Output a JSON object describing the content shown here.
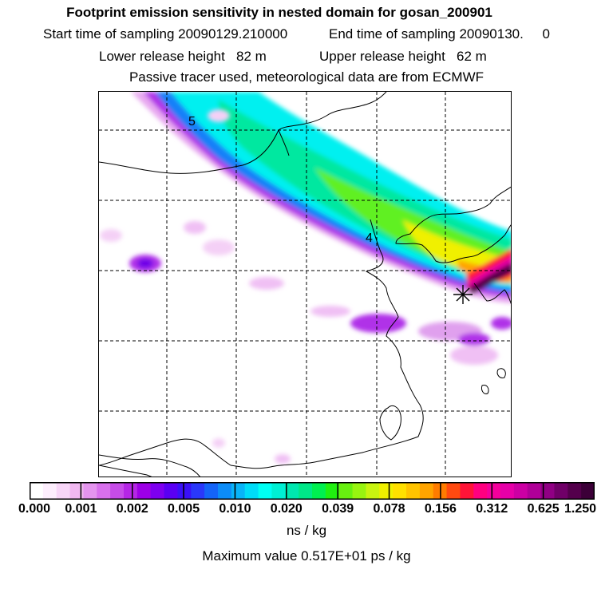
{
  "title": "Footprint emission sensitivity in nested domain for gosan_200901",
  "sampling": {
    "start": "Start time of sampling 20090129.210000",
    "end": "End time of sampling 20090130.     0"
  },
  "release": {
    "lower": "Lower release height   82 m",
    "upper": "Upper release height   62 m"
  },
  "tracer_info": "Passive tracer used, meteorological data are from ECMWF",
  "map": {
    "contour_labels": [
      "5",
      "4"
    ],
    "receptor_marker": "star-icon"
  },
  "colorbar": {
    "labels": [
      "0.000",
      "0.001",
      "0.002",
      "0.005",
      "0.010",
      "0.020",
      "0.039",
      "0.078",
      "0.156",
      "0.312",
      "0.625",
      "1.250"
    ],
    "colors": [
      "#ffffff",
      "#fdeefd",
      "#f8d6f8",
      "#f0b8f0",
      "#e494ee",
      "#d870ec",
      "#c64ce8",
      "#b526e6",
      "#9d00e6",
      "#7e00f0",
      "#5a00f4",
      "#3a10f8",
      "#2a38fa",
      "#1464f8",
      "#0c8cf8",
      "#08b4f8",
      "#00dcf8",
      "#00fff4",
      "#00f0d4",
      "#00e8b0",
      "#00e888",
      "#00f050",
      "#20f010",
      "#68f010",
      "#98f410",
      "#c8f410",
      "#f0f000",
      "#ffe000",
      "#ffc400",
      "#ffa400",
      "#ff7c00",
      "#ff4a10",
      "#ff1438",
      "#ff0080",
      "#f4009c",
      "#e600a8",
      "#cc00a4",
      "#b00098",
      "#900084",
      "#700068",
      "#54004c",
      "#3c0038"
    ],
    "unit": "ns / kg"
  },
  "max_value": "Maximum value  0.517E+01 ps / kg"
}
